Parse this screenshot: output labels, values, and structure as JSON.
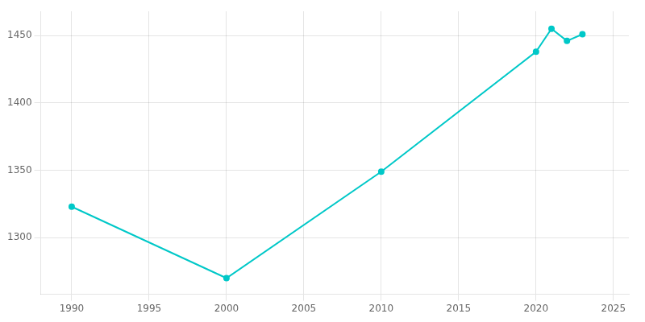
{
  "chart_data": {
    "type": "line",
    "x": [
      1990,
      2000,
      2010,
      2020,
      2021,
      2022,
      2023
    ],
    "values": [
      1323,
      1270,
      1349,
      1438,
      1455,
      1446,
      1451
    ],
    "color": "#00c8c8",
    "marker": "circle",
    "xlim": [
      1988,
      2026
    ],
    "ylim": [
      1258,
      1468
    ],
    "xticks": [
      1990,
      1995,
      2000,
      2005,
      2010,
      2015,
      2020,
      2025
    ],
    "yticks": [
      1300,
      1350,
      1400,
      1450
    ],
    "grid": true
  }
}
